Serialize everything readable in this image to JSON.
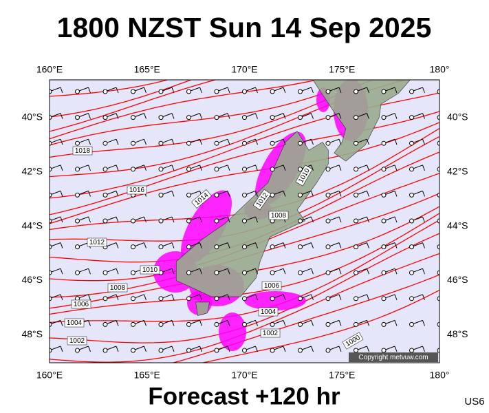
{
  "header": {
    "title": "1800 NZST Sun 14 Sep 2025"
  },
  "map": {
    "lon_labels": [
      "160°E",
      "165°E",
      "170°E",
      "175°E",
      "180°"
    ],
    "lat_labels": [
      "40°S",
      "42°S",
      "44°S",
      "46°S",
      "48°S"
    ],
    "isobar_labels": [
      "1018",
      "1016",
      "1014",
      "1012",
      "1010",
      "1008",
      "1006",
      "1004",
      "1002",
      "1010",
      "1012",
      "1008",
      "1006",
      "1004",
      "1002",
      "1000"
    ],
    "copyright": "Copyright metvuw.com"
  },
  "footer": {
    "caption": "Forecast +120 hr",
    "code": "US6"
  }
}
